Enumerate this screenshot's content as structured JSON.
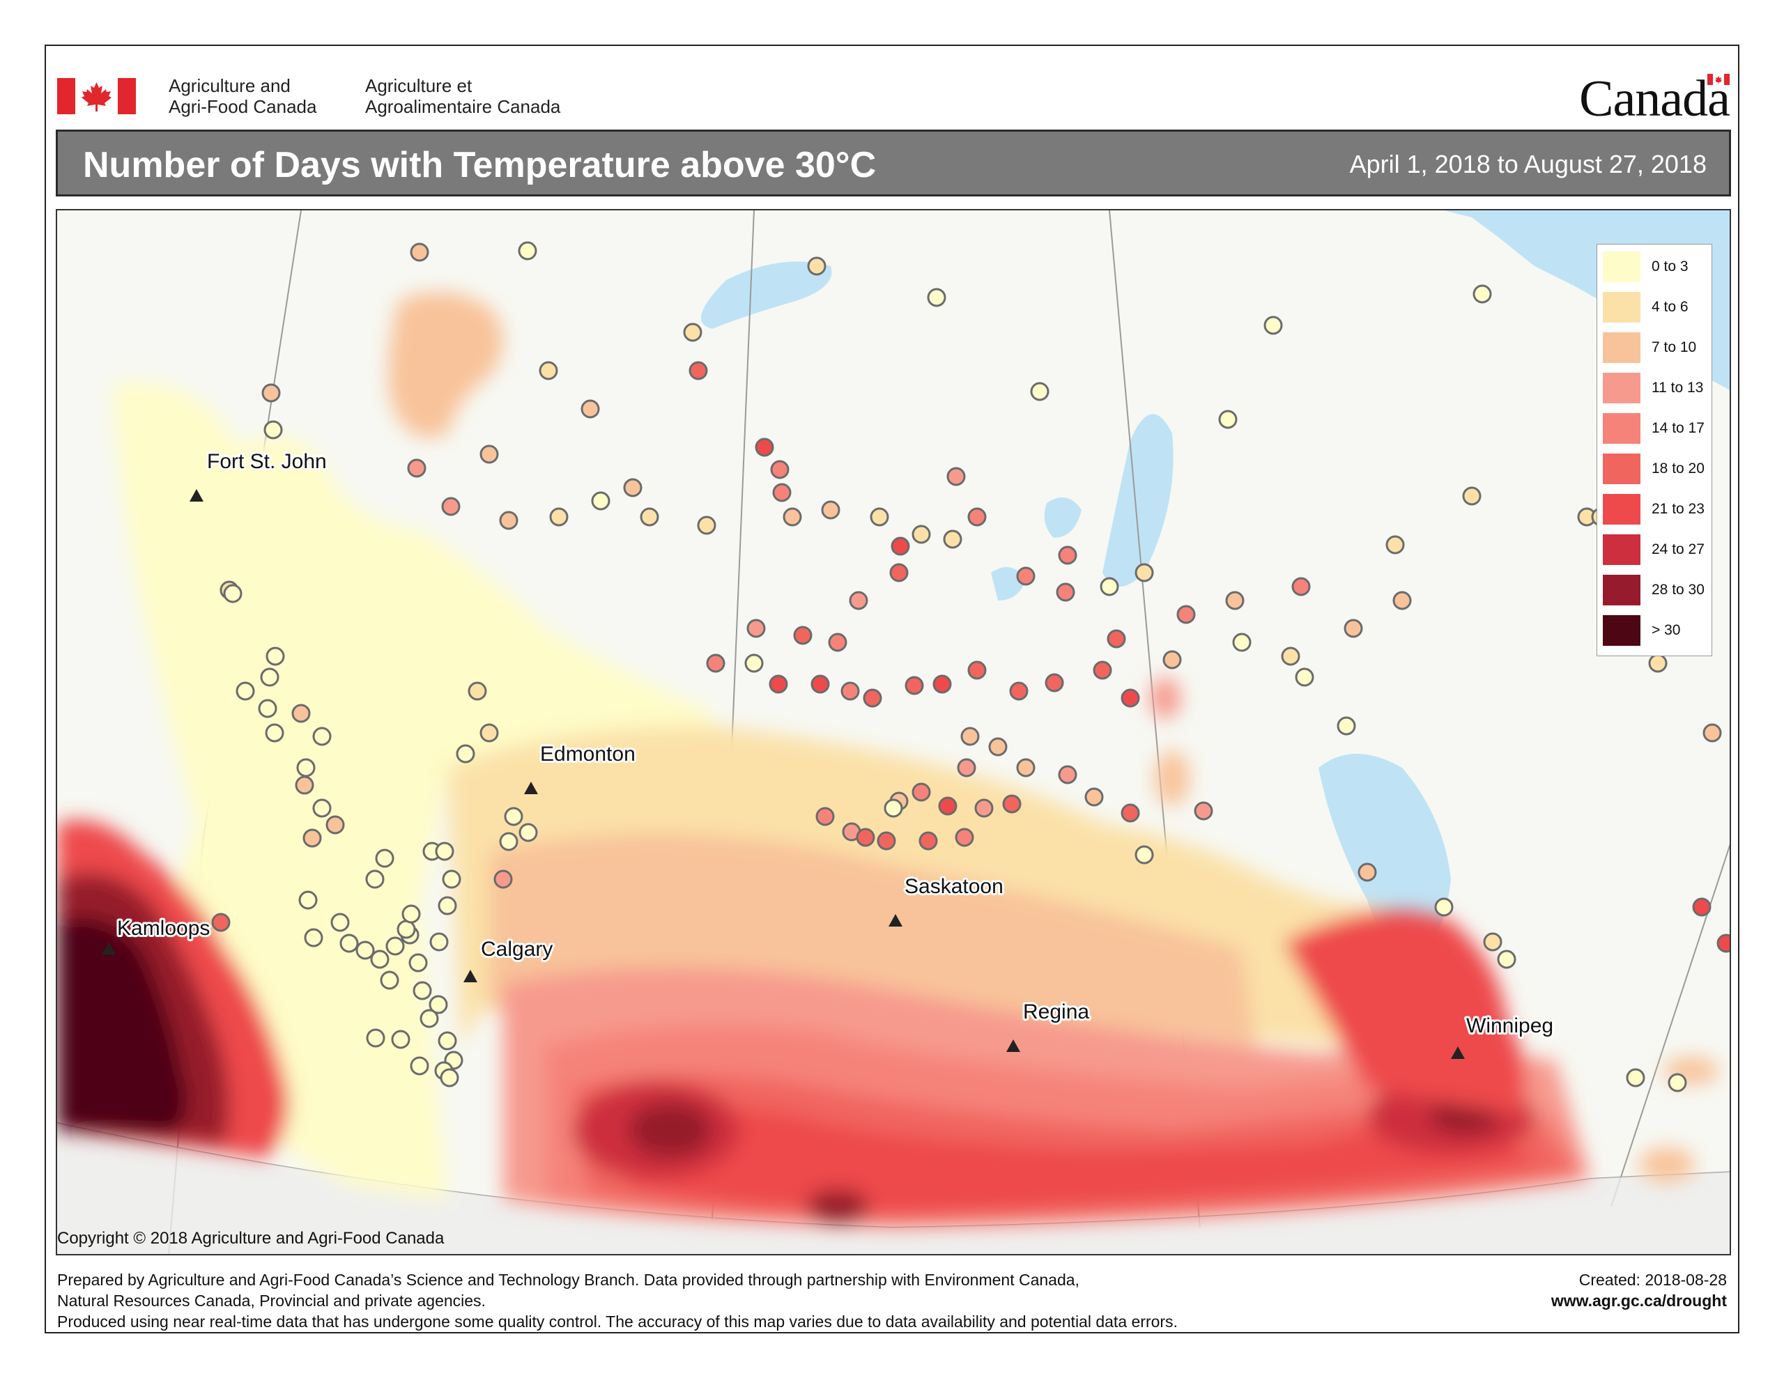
{
  "header": {
    "department_en_line1": "Agriculture and",
    "department_en_line2": "Agri-Food Canada",
    "department_fr_line1": "Agriculture et",
    "department_fr_line2": "Agroalimentaire Canada",
    "wordmark": "Canada"
  },
  "title": "Number of Days with Temperature above 30°C",
  "date_range": "April 1, 2018 to August 27, 2018",
  "legend": [
    {
      "label": "0 to 3",
      "color": "#fefcc8"
    },
    {
      "label": "4 to 6",
      "color": "#fbe1a8"
    },
    {
      "label": "7 to 10",
      "color": "#f8c39a"
    },
    {
      "label": "11 to 13",
      "color": "#f79a8e"
    },
    {
      "label": "14 to 17",
      "color": "#f5837a"
    },
    {
      "label": "18 to 20",
      "color": "#f1655f"
    },
    {
      "label": "21 to 23",
      "color": "#ee4a4c"
    },
    {
      "label": "24 to 27",
      "color": "#cd2f3e"
    },
    {
      "label": "28 to 30",
      "color": "#961b2c"
    },
    {
      "label": "> 30",
      "color": "#4d0613"
    }
  ],
  "cities": [
    {
      "name": "Fort St. John"
    },
    {
      "name": "Edmonton"
    },
    {
      "name": "Kamloops"
    },
    {
      "name": "Calgary"
    },
    {
      "name": "Saskatoon"
    },
    {
      "name": "Regina"
    },
    {
      "name": "Winnipeg"
    }
  ],
  "copyright": "Copyright © 2018 Agriculture and Agri-Food Canada",
  "footer": {
    "line1": "Prepared by Agriculture and Agri-Food Canada’s Science and Technology Branch. Data provided through partnership with Environment Canada,",
    "line2": "Natural Resources Canada, Provincial and private agencies.",
    "line3": "Produced using near real-time data that has undergone some quality control. The accuracy of this map varies due to data availability and potential data errors.",
    "created": "Created: 2018-08-28",
    "url": "www.agr.gc.ca/drought"
  }
}
